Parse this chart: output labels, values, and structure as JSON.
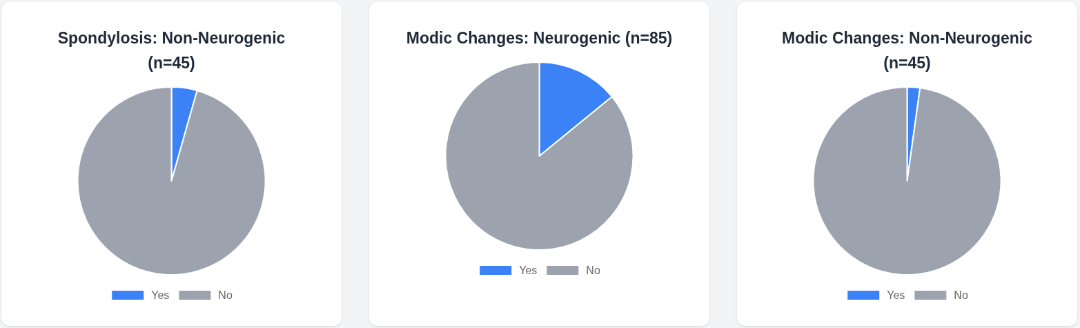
{
  "chart_data": [
    {
      "type": "pie",
      "title": "Spondylosis: Non-Neurogenic (n=45)",
      "categories": [
        "Yes",
        "No"
      ],
      "values": [
        4.4,
        95.6
      ],
      "colors": [
        "#3b82f6",
        "#9ca3af"
      ],
      "legend": "bottom"
    },
    {
      "type": "pie",
      "title": "Modic Changes: Neurogenic (n=85)",
      "categories": [
        "Yes",
        "No"
      ],
      "values": [
        14.1,
        85.9
      ],
      "colors": [
        "#3b82f6",
        "#9ca3af"
      ],
      "legend": "bottom"
    },
    {
      "type": "pie",
      "title": "Modic Changes: Non-Neurogenic (n=45)",
      "categories": [
        "Yes",
        "No"
      ],
      "values": [
        2.2,
        97.8
      ],
      "colors": [
        "#3b82f6",
        "#9ca3af"
      ],
      "legend": "bottom"
    }
  ]
}
